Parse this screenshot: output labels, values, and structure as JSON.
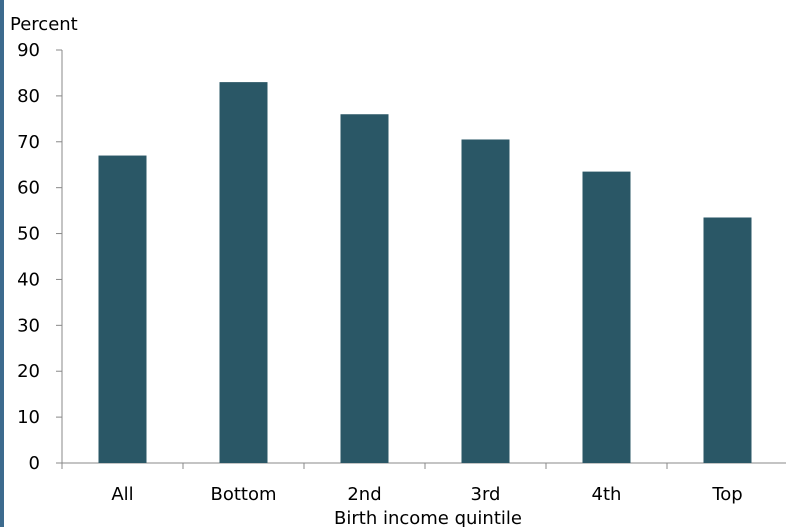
{
  "chart_data": {
    "type": "bar",
    "ylabel": "Percent",
    "xlabel": "Birth income quintile",
    "categories": [
      "All",
      "Bottom",
      "2nd",
      "3rd",
      "4th",
      "Top"
    ],
    "values": [
      67,
      83,
      76,
      70.5,
      63.5,
      53.5
    ],
    "ylim": [
      0,
      90
    ],
    "yticks": [
      "0",
      "10",
      "20",
      "30",
      "40",
      "50",
      "60",
      "70",
      "80",
      "90"
    ],
    "grid": false,
    "bar_color": "#2a5766",
    "axis_color": "#888888",
    "edge_color": "#3d6b8e"
  }
}
